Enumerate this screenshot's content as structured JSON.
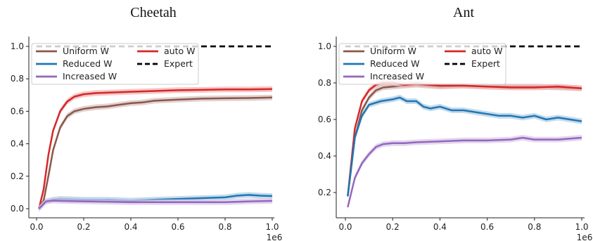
{
  "chart_data": [
    {
      "type": "line",
      "title": "Cheetah",
      "xlim": [
        0,
        1000000
      ],
      "ylim": [
        0.0,
        1.0
      ],
      "x_ticks": [
        0,
        200000,
        400000,
        600000,
        800000,
        1000000
      ],
      "x_tick_labels": [
        "0.0",
        "0.2",
        "0.4",
        "0.6",
        "0.8",
        "1.0"
      ],
      "x_offset_label": "1e6",
      "y_ticks": [
        0.0,
        0.2,
        0.4,
        0.6,
        0.8,
        1.0
      ],
      "y_tick_labels": [
        "0.0",
        "0.2",
        "0.4",
        "0.6",
        "0.8",
        "1.0"
      ],
      "legend": {
        "position": "top-left",
        "columns": 2
      },
      "series": [
        {
          "name": "Uniform W",
          "color": "#8c564b",
          "x": [
            10000,
            30000,
            50000,
            70000,
            100000,
            130000,
            160000,
            200000,
            250000,
            300000,
            350000,
            400000,
            450000,
            500000,
            600000,
            700000,
            800000,
            900000,
            1000000
          ],
          "y": [
            0.0,
            0.05,
            0.2,
            0.36,
            0.5,
            0.57,
            0.6,
            0.615,
            0.625,
            0.63,
            0.64,
            0.65,
            0.655,
            0.665,
            0.672,
            0.678,
            0.68,
            0.682,
            0.685
          ]
        },
        {
          "name": "auto W",
          "color": "#d62728",
          "x": [
            10000,
            30000,
            50000,
            70000,
            100000,
            130000,
            160000,
            200000,
            250000,
            300000,
            400000,
            500000,
            600000,
            700000,
            800000,
            900000,
            1000000
          ],
          "y": [
            0.0,
            0.12,
            0.33,
            0.48,
            0.6,
            0.66,
            0.69,
            0.705,
            0.712,
            0.715,
            0.72,
            0.725,
            0.73,
            0.732,
            0.735,
            0.735,
            0.737
          ]
        },
        {
          "name": "Reduced W",
          "color": "#1f77b4",
          "x": [
            10000,
            40000,
            70000,
            100000,
            200000,
            300000,
            400000,
            500000,
            600000,
            700000,
            800000,
            850000,
            900000,
            950000,
            1000000
          ],
          "y": [
            0.0,
            0.045,
            0.055,
            0.06,
            0.055,
            0.055,
            0.05,
            0.055,
            0.06,
            0.065,
            0.07,
            0.08,
            0.085,
            0.08,
            0.078
          ]
        },
        {
          "name": "Increased W",
          "color": "#9467bd",
          "x": [
            10000,
            40000,
            70000,
            100000,
            200000,
            300000,
            400000,
            500000,
            600000,
            700000,
            800000,
            900000,
            1000000
          ],
          "y": [
            0.0,
            0.045,
            0.05,
            0.048,
            0.045,
            0.043,
            0.04,
            0.04,
            0.04,
            0.04,
            0.04,
            0.045,
            0.048
          ]
        },
        {
          "name": "Expert",
          "color": "#000000",
          "style": "dashed",
          "x": [
            0,
            1000000
          ],
          "y": [
            1.0,
            1.0
          ]
        }
      ]
    },
    {
      "type": "line",
      "title": "Ant",
      "xlim": [
        0,
        1000000
      ],
      "ylim": [
        0.1,
        1.0
      ],
      "x_ticks": [
        0,
        200000,
        400000,
        600000,
        800000,
        1000000
      ],
      "x_tick_labels": [
        "0.0",
        "0.2",
        "0.4",
        "0.6",
        "0.8",
        "1.0"
      ],
      "x_offset_label": "1e6",
      "y_ticks": [
        0.2,
        0.4,
        0.6,
        0.8,
        1.0
      ],
      "y_tick_labels": [
        "0.2",
        "0.4",
        "0.6",
        "0.8",
        "1.0"
      ],
      "legend": {
        "position": "top-left",
        "columns": 2
      },
      "series": [
        {
          "name": "Uniform W",
          "color": "#8c564b",
          "x": [
            10000,
            40000,
            70000,
            100000,
            130000,
            160000,
            200000,
            250000,
            300000,
            350000,
            400000,
            500000,
            600000,
            700000,
            800000,
            900000,
            1000000
          ],
          "y": [
            0.18,
            0.5,
            0.65,
            0.72,
            0.76,
            0.775,
            0.78,
            0.785,
            0.79,
            0.785,
            0.78,
            0.785,
            0.78,
            0.78,
            0.78,
            0.775,
            0.77
          ]
        },
        {
          "name": "auto W",
          "color": "#d62728",
          "x": [
            10000,
            40000,
            70000,
            100000,
            130000,
            160000,
            200000,
            250000,
            300000,
            350000,
            400000,
            500000,
            600000,
            700000,
            800000,
            900000,
            1000000
          ],
          "y": [
            0.18,
            0.55,
            0.7,
            0.76,
            0.79,
            0.8,
            0.8,
            0.79,
            0.795,
            0.79,
            0.785,
            0.785,
            0.78,
            0.775,
            0.775,
            0.78,
            0.77
          ]
        },
        {
          "name": "Reduced W",
          "color": "#1f77b4",
          "x": [
            10000,
            40000,
            70000,
            100000,
            150000,
            200000,
            230000,
            260000,
            300000,
            330000,
            360000,
            400000,
            450000,
            500000,
            550000,
            600000,
            650000,
            700000,
            750000,
            800000,
            850000,
            900000,
            950000,
            1000000
          ],
          "y": [
            0.18,
            0.5,
            0.62,
            0.68,
            0.7,
            0.71,
            0.72,
            0.7,
            0.7,
            0.67,
            0.66,
            0.67,
            0.65,
            0.65,
            0.64,
            0.63,
            0.62,
            0.62,
            0.61,
            0.62,
            0.6,
            0.61,
            0.6,
            0.59
          ]
        },
        {
          "name": "Increased W",
          "color": "#9467bd",
          "x": [
            10000,
            40000,
            70000,
            100000,
            130000,
            160000,
            200000,
            250000,
            300000,
            400000,
            500000,
            600000,
            700000,
            750000,
            800000,
            900000,
            1000000
          ],
          "y": [
            0.12,
            0.28,
            0.36,
            0.41,
            0.45,
            0.465,
            0.47,
            0.47,
            0.475,
            0.48,
            0.485,
            0.485,
            0.49,
            0.5,
            0.49,
            0.49,
            0.5
          ]
        },
        {
          "name": "Expert",
          "color": "#000000",
          "style": "dashed",
          "x": [
            0,
            1000000
          ],
          "y": [
            1.0,
            1.0
          ]
        }
      ]
    }
  ]
}
